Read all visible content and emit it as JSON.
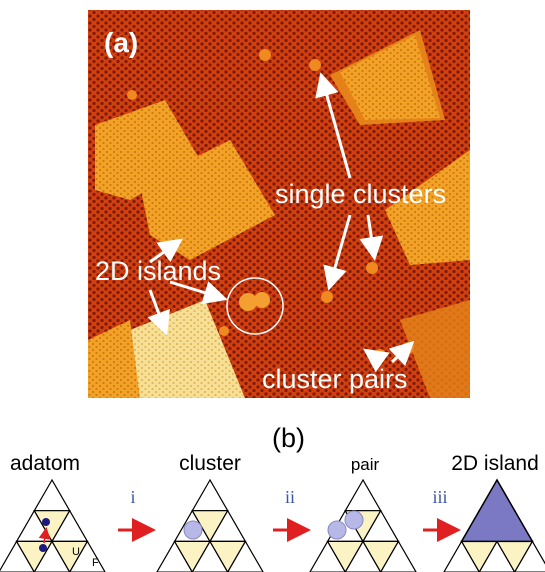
{
  "panel_a": {
    "label": "(a)",
    "annotations": [
      "single clusters",
      "2D islands",
      "cluster pairs"
    ]
  },
  "panel_b": {
    "label": "(b)",
    "stages": [
      "adatom",
      "cluster",
      "pair",
      "2D island"
    ],
    "steps": [
      "i",
      "ii",
      "iii"
    ],
    "site_labels": [
      "U",
      "F"
    ]
  }
}
